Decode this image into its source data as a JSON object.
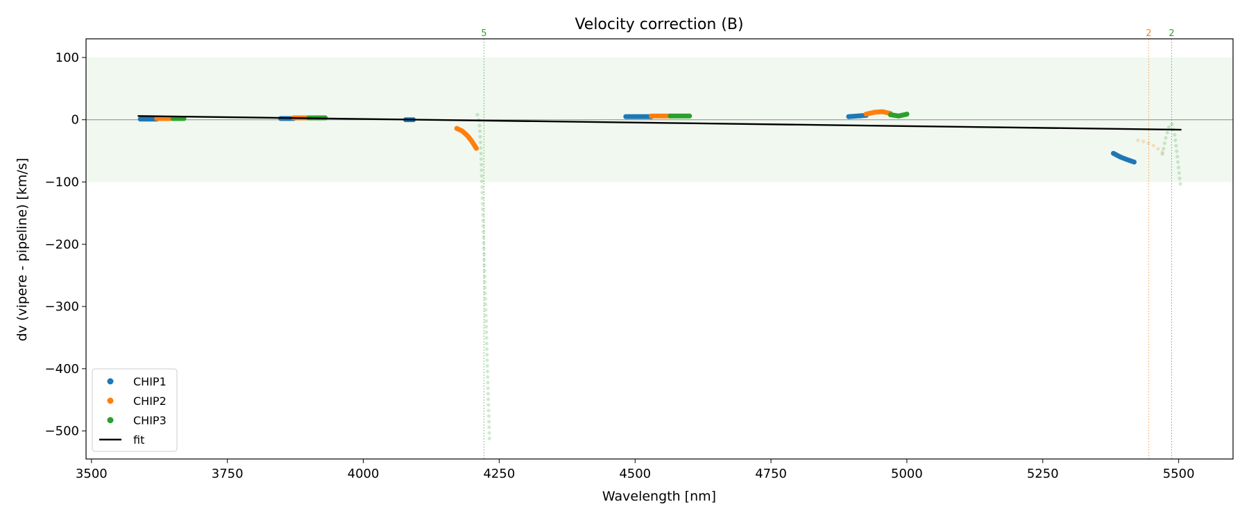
{
  "chart_data": {
    "type": "scatter",
    "title": "Velocity correction (B)",
    "xlabel": "Wavelength [nm]",
    "ylabel": "dv (vipere - pipeline) [km/s]",
    "xlim": [
      3490,
      5600
    ],
    "ylim": [
      -545,
      130
    ],
    "xticks": [
      3500,
      3750,
      4000,
      4250,
      4500,
      4750,
      5000,
      5250,
      5500
    ],
    "yticks": [
      100,
      0,
      -100,
      -200,
      -300,
      -400,
      -500
    ],
    "grid": false,
    "band": {
      "y0": -100,
      "y1": 100,
      "color": "#2ca02c"
    },
    "zero_line": 0,
    "colors": {
      "CHIP1": "#1f77b4",
      "CHIP2": "#ff7f0e",
      "CHIP3": "#2ca02c",
      "fit": "#000000"
    },
    "legend": {
      "position": "lower-left",
      "entries": [
        {
          "label": "CHIP1",
          "type": "marker",
          "color": "#1f77b4"
        },
        {
          "label": "CHIP2",
          "type": "marker",
          "color": "#ff7f0e"
        },
        {
          "label": "CHIP3",
          "type": "marker",
          "color": "#2ca02c"
        },
        {
          "label": "fit",
          "type": "line",
          "color": "#000000"
        }
      ]
    },
    "fit": {
      "x": [
        3585,
        5505
      ],
      "y": [
        6,
        -16
      ]
    },
    "vertical_markers": [
      {
        "x": 4222,
        "label": "5",
        "color": "#2ca02c"
      },
      {
        "x": 5445,
        "label": "2",
        "color": "#ff7f0e"
      },
      {
        "x": 5487,
        "label": "2",
        "color": "#2ca02c"
      }
    ],
    "series": [
      {
        "name": "CHIP1",
        "color": "#1f77b4",
        "segments": [
          {
            "x": [
              3590,
              3620
            ],
            "y": [
              1,
              1
            ]
          },
          {
            "x": [
              3848,
              3872
            ],
            "y": [
              2,
              2
            ]
          },
          {
            "x": [
              4078,
              4092
            ],
            "y": [
              0,
              0
            ]
          },
          {
            "x": [
              4483,
              4530
            ],
            "y": [
              5,
              5
            ]
          },
          {
            "x": [
              4893,
              4925
            ],
            "y": [
              5,
              7
            ]
          },
          {
            "x": [
              5380,
              5393,
              5405,
              5418
            ],
            "y": [
              -54,
              -60,
              -64,
              -68
            ]
          }
        ]
      },
      {
        "name": "CHIP2",
        "color": "#ff7f0e",
        "segments": [
          {
            "x": [
              3620,
              3650
            ],
            "y": [
              2,
              2
            ]
          },
          {
            "x": [
              3872,
              3900
            ],
            "y": [
              3,
              3
            ]
          },
          {
            "x": [
              4172,
              4182,
              4192,
              4200,
              4208
            ],
            "y": [
              -14,
              -18,
              -26,
              -35,
              -46
            ]
          },
          {
            "x": [
              4530,
              4565
            ],
            "y": [
              6,
              6
            ]
          },
          {
            "x": [
              4925,
              4940,
              4955,
              4970
            ],
            "y": [
              9,
              12,
              13,
              10
            ]
          },
          {
            "x": [
              5425,
              5440,
              5455,
              5470
            ],
            "y": [
              -33,
              -36,
              -42,
              -52
            ],
            "faded": true
          }
        ]
      },
      {
        "name": "CHIP3",
        "color": "#2ca02c",
        "segments": [
          {
            "x": [
              3650,
              3670
            ],
            "y": [
              2,
              2
            ]
          },
          {
            "x": [
              3900,
              3930
            ],
            "y": [
              3,
              3
            ]
          },
          {
            "x": [
              4565,
              4600
            ],
            "y": [
              6,
              6
            ]
          },
          {
            "x": [
              4970,
              4985,
              5000
            ],
            "y": [
              8,
              6,
              9
            ]
          },
          {
            "x": [
              4210,
              4212,
              4214,
              4216,
              4218,
              4220,
              4222,
              4224,
              4226,
              4228,
              4230,
              4232
            ],
            "y": [
              8,
              5,
              -10,
              -40,
              -90,
              -150,
              -210,
              -270,
              -330,
              -390,
              -450,
              -512
            ],
            "faded": true
          },
          {
            "x": [
              5470,
              5476,
              5482,
              5487,
              5492,
              5497,
              5503
            ],
            "y": [
              -55,
              -30,
              -12,
              -6,
              -20,
              -55,
              -103
            ],
            "faded": true
          }
        ]
      }
    ]
  }
}
